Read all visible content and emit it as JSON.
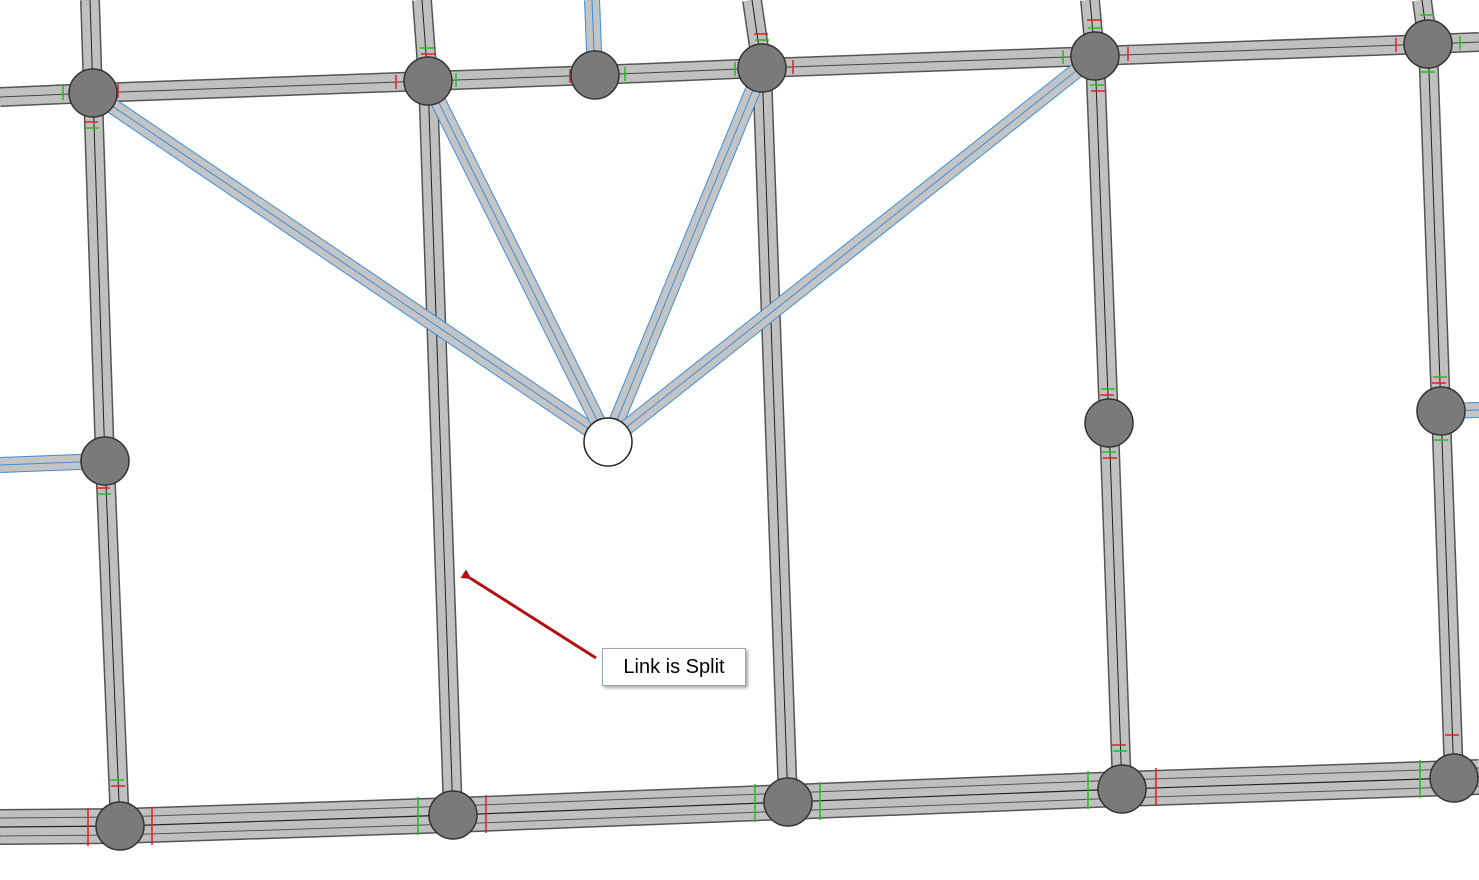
{
  "annotation": {
    "callout_text": "Link is Split"
  },
  "colors": {
    "road_fill": "#c0c0c0",
    "road_edge": "#555555",
    "road_center": "#222222",
    "connector_fill": "#c4c4c4",
    "connector_edge": "#3a8ede",
    "node_fill": "#7a7a7a",
    "node_stroke": "#333333",
    "zone_node_fill": "#ffffff",
    "arrow": "#b01010",
    "tick_red": "#e02020",
    "tick_green": "#20c020"
  },
  "icons": {
    "nodes": "filled-circle",
    "zone_node": "hollow-circle",
    "pointer": "arrow"
  }
}
